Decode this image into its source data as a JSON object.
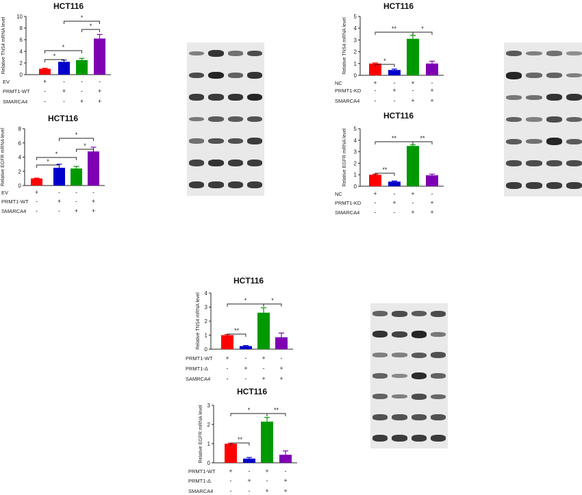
{
  "chart_data": [
    {
      "type": "bar",
      "title": "HCT116",
      "ylabel": "Relative TNS4 mRNA level",
      "ylim": [
        0,
        10
      ],
      "ticks": [
        "0",
        "2",
        "4",
        "6",
        "8",
        "10"
      ],
      "values": [
        1.0,
        2.2,
        2.5,
        6.2
      ],
      "errors": [
        0.1,
        0.3,
        0.3,
        0.7
      ],
      "colors": [
        "#ff0000",
        "#0000cc",
        "#009900",
        "#7f00b3"
      ],
      "rows": [
        {
          "label": "EV",
          "marks": [
            "+",
            "-",
            "-",
            "-"
          ]
        },
        {
          "label": "PRMT1-WT",
          "marks": [
            "-",
            "+",
            "-",
            "+"
          ]
        },
        {
          "label": "SMARCA4",
          "marks": [
            "-",
            "-",
            "+",
            "+"
          ]
        }
      ],
      "sig": [
        {
          "from": 0,
          "to": 1,
          "label": "*"
        },
        {
          "from": 0,
          "to": 2,
          "label": "*"
        },
        {
          "from": 2,
          "to": 3,
          "label": "*"
        },
        {
          "from": 1,
          "to": 3,
          "label": "*"
        }
      ]
    },
    {
      "type": "bar",
      "title": "HCT116",
      "ylabel": "Relative EGFR mRNA level",
      "ylim": [
        0,
        8
      ],
      "ticks": [
        "0",
        "2",
        "4",
        "6",
        "8"
      ],
      "values": [
        1.0,
        2.5,
        2.4,
        4.8
      ],
      "errors": [
        0.05,
        0.5,
        0.3,
        0.6
      ],
      "colors": [
        "#ff0000",
        "#0000cc",
        "#009900",
        "#7f00b3"
      ],
      "rows": [
        {
          "label": "EV",
          "marks": [
            "+",
            "-",
            "-",
            "-"
          ]
        },
        {
          "label": "PRMT1-WT",
          "marks": [
            "-",
            "+",
            "-",
            "+"
          ]
        },
        {
          "label": "SMARCA4",
          "marks": [
            "-",
            "-",
            "+",
            "+"
          ]
        }
      ],
      "sig": [
        {
          "from": 0,
          "to": 1,
          "label": "*"
        },
        {
          "from": 0,
          "to": 2,
          "label": "*"
        },
        {
          "from": 2,
          "to": 3,
          "label": "*"
        },
        {
          "from": 1,
          "to": 3,
          "label": "*"
        }
      ]
    },
    {
      "type": "bar",
      "title": "HCT116",
      "ylabel": "Relative TNS4 mRNA level",
      "ylim": [
        0,
        5
      ],
      "ticks": [
        "0",
        "1",
        "2",
        "3",
        "4",
        "5"
      ],
      "values": [
        1.0,
        0.45,
        3.1,
        1.0
      ],
      "errors": [
        0.05,
        0.08,
        0.3,
        0.2
      ],
      "colors": [
        "#ff0000",
        "#0000cc",
        "#009900",
        "#7f00b3"
      ],
      "rows": [
        {
          "label": "NC",
          "marks": [
            "+",
            "-",
            "+",
            "-"
          ]
        },
        {
          "label": "PRMT1-KD",
          "marks": [
            "-",
            "+",
            "-",
            "+"
          ]
        },
        {
          "label": "SMARCA4",
          "marks": [
            "-",
            "-",
            "+",
            "+"
          ]
        }
      ],
      "sig": [
        {
          "from": 0,
          "to": 1,
          "label": "*"
        },
        {
          "from": 0,
          "to": 2,
          "label": "**"
        },
        {
          "from": 2,
          "to": 3,
          "label": "*"
        }
      ]
    },
    {
      "type": "bar",
      "title": "HCT116",
      "ylabel": "Relative EGFR mRNA level",
      "ylim": [
        0,
        5
      ],
      "ticks": [
        "0",
        "1",
        "2",
        "3",
        "4",
        "5"
      ],
      "values": [
        1.0,
        0.4,
        3.5,
        0.95
      ],
      "errors": [
        0.05,
        0.05,
        0.1,
        0.1
      ],
      "colors": [
        "#ff0000",
        "#0000cc",
        "#009900",
        "#7f00b3"
      ],
      "rows": [
        {
          "label": "NC",
          "marks": [
            "+",
            "-",
            "+",
            "-"
          ]
        },
        {
          "label": "PRMT1-KD",
          "marks": [
            "-",
            "+",
            "-",
            "+"
          ]
        },
        {
          "label": "SMARCA4",
          "marks": [
            "-",
            "-",
            "+",
            "+"
          ]
        }
      ],
      "sig": [
        {
          "from": 0,
          "to": 1,
          "label": "**"
        },
        {
          "from": 0,
          "to": 2,
          "label": "**"
        },
        {
          "from": 2,
          "to": 3,
          "label": "**"
        }
      ]
    },
    {
      "type": "bar",
      "title": "HCT116",
      "ylabel": "Relative TNS4 mRNA level",
      "ylim": [
        0,
        4
      ],
      "ticks": [
        "0",
        "1",
        "2",
        "3",
        "4"
      ],
      "values": [
        1.0,
        0.22,
        2.6,
        0.85
      ],
      "errors": [
        0.05,
        0.04,
        0.35,
        0.3
      ],
      "colors": [
        "#ff0000",
        "#0000cc",
        "#009900",
        "#7f00b3"
      ],
      "rows": [
        {
          "label": "PRMT1-WT",
          "marks": [
            "+",
            "-",
            "+",
            "-"
          ]
        },
        {
          "label": "PRMT1-Δ",
          "marks": [
            "-",
            "+",
            "-",
            "+"
          ]
        },
        {
          "label": "SAMRCA4",
          "marks": [
            "-",
            "-",
            "+",
            "+"
          ]
        }
      ],
      "sig": [
        {
          "from": 0,
          "to": 1,
          "label": "**"
        },
        {
          "from": 0,
          "to": 2,
          "label": "*"
        },
        {
          "from": 2,
          "to": 3,
          "label": "*"
        }
      ]
    },
    {
      "type": "bar",
      "title": "HCT116",
      "ylabel": "Relative EGFR mRNA level",
      "ylim": [
        0,
        3
      ],
      "ticks": [
        "0",
        "1",
        "2",
        "3"
      ],
      "values": [
        1.0,
        0.22,
        2.15,
        0.42
      ],
      "errors": [
        0.03,
        0.06,
        0.22,
        0.2
      ],
      "colors": [
        "#ff0000",
        "#0000cc",
        "#009900",
        "#7f00b3"
      ],
      "rows": [
        {
          "label": "PRMT1-WT",
          "marks": [
            "+",
            "-",
            "+",
            "-"
          ]
        },
        {
          "label": "PRMT1-Δ",
          "marks": [
            "-",
            "+",
            "-",
            "+"
          ]
        },
        {
          "label": "SMARCA4",
          "marks": [
            "-",
            "-",
            "+",
            "+"
          ]
        }
      ],
      "sig": [
        {
          "from": 0,
          "to": 1,
          "label": "**"
        },
        {
          "from": 0,
          "to": 2,
          "label": "*"
        },
        {
          "from": 2,
          "to": 3,
          "label": "**"
        }
      ]
    }
  ],
  "western_blots": [
    {
      "bands": [
        [
          0.35,
          0.85,
          0.45,
          0.7
        ],
        [
          0.7,
          0.95,
          0.55,
          0.85
        ],
        [
          0.8,
          0.8,
          0.85,
          0.95
        ],
        [
          0.4,
          0.6,
          0.6,
          0.65
        ],
        [
          0.45,
          0.65,
          0.65,
          0.8
        ],
        [
          0.75,
          0.85,
          0.8,
          0.8
        ],
        [
          0.8,
          0.8,
          0.8,
          0.8
        ]
      ]
    },
    {
      "bands": [
        [
          0.6,
          0.35,
          0.45,
          0.25
        ],
        [
          0.95,
          0.5,
          0.55,
          0.35
        ],
        [
          0.4,
          0.45,
          0.85,
          0.85
        ],
        [
          0.55,
          0.35,
          0.7,
          0.55
        ],
        [
          0.6,
          0.45,
          0.95,
          0.6
        ],
        [
          0.7,
          0.7,
          0.7,
          0.7
        ],
        [
          0.8,
          0.8,
          0.8,
          0.8
        ]
      ]
    },
    {
      "bands": [
        [
          0.55,
          0.7,
          0.6,
          0.7
        ],
        [
          0.85,
          0.75,
          0.95,
          0.4
        ],
        [
          0.35,
          0.35,
          0.6,
          0.65
        ],
        [
          0.55,
          0.3,
          0.9,
          0.55
        ],
        [
          0.55,
          0.35,
          0.7,
          0.5
        ],
        [
          0.65,
          0.65,
          0.65,
          0.65
        ],
        [
          0.8,
          0.8,
          0.8,
          0.8
        ]
      ]
    }
  ]
}
